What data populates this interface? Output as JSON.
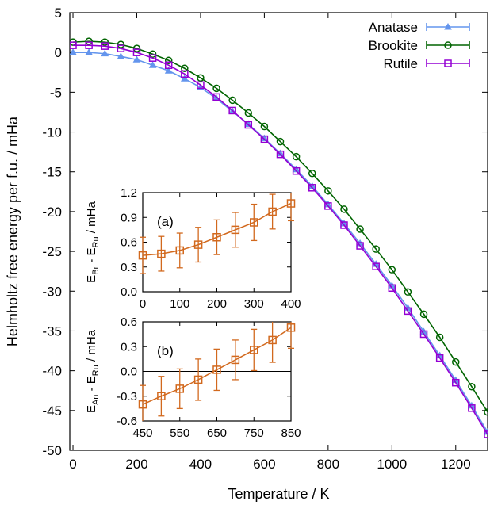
{
  "chart_data": [
    {
      "type": "line",
      "xlabel": "Temperature / K",
      "ylabel": "Helmholtz free energy per f.u. / mHa",
      "xlim": [
        -10,
        1300
      ],
      "ylim": [
        -50,
        5
      ],
      "xticks": [
        0,
        200,
        400,
        600,
        800,
        1000,
        1200
      ],
      "xtick_labels": [
        "0",
        "200",
        "400",
        "600",
        "800",
        "1000",
        "1200"
      ],
      "yticks": [
        5,
        0,
        -5,
        -10,
        -15,
        -20,
        -25,
        -30,
        -35,
        -40,
        -45,
        -50
      ],
      "ytick_labels": [
        "5",
        "0",
        "-5",
        "-10",
        "-15",
        "-20",
        "-25",
        "-30",
        "-35",
        "-40",
        "-45",
        "-50"
      ],
      "legend_position": "top-right",
      "x": [
        0,
        50,
        100,
        150,
        200,
        250,
        300,
        350,
        400,
        450,
        500,
        550,
        600,
        650,
        700,
        750,
        800,
        850,
        900,
        950,
        1000,
        1050,
        1100,
        1150,
        1200,
        1250,
        1300
      ],
      "series": [
        {
          "name": "Anatase",
          "color": "#6495ed",
          "marker": "triangle",
          "values": [
            0.0,
            0.0,
            -0.15,
            -0.5,
            -0.9,
            -1.6,
            -2.3,
            -3.3,
            -4.4,
            -5.8,
            -7.4,
            -9.0,
            -10.8,
            -12.7,
            -14.7,
            -16.8,
            -19.1,
            -21.5,
            -24.0,
            -26.6,
            -29.3,
            -32.1,
            -35.1,
            -38.1,
            -41.2,
            -44.4,
            -47.7
          ]
        },
        {
          "name": "Brookite",
          "color": "#006400",
          "marker": "circle",
          "values": [
            1.3,
            1.4,
            1.3,
            1.0,
            0.5,
            -0.2,
            -1.0,
            -2.0,
            -3.2,
            -4.5,
            -6.0,
            -7.6,
            -9.3,
            -11.2,
            -13.1,
            -15.2,
            -17.4,
            -19.7,
            -22.2,
            -24.7,
            -27.3,
            -30.1,
            -32.9,
            -35.8,
            -38.9,
            -42.0,
            -45.2
          ]
        },
        {
          "name": "Rutile",
          "color": "#9400d3",
          "marker": "square",
          "values": [
            0.9,
            0.9,
            0.8,
            0.5,
            0.0,
            -0.7,
            -1.6,
            -2.7,
            -4.1,
            -5.6,
            -7.3,
            -9.1,
            -10.9,
            -12.8,
            -14.9,
            -17.0,
            -19.3,
            -21.7,
            -24.3,
            -26.9,
            -29.6,
            -32.5,
            -35.4,
            -38.4,
            -41.5,
            -44.7,
            -48.0
          ]
        }
      ]
    },
    {
      "type": "line",
      "label": "(a)",
      "ylabel_parts": {
        "main1": "E",
        "sub1": "Br",
        "mid": " - E",
        "sub2": "Ru",
        "tail": " / mHa"
      },
      "xlim": [
        0,
        400
      ],
      "ylim": [
        0.0,
        1.2
      ],
      "xticks": [
        0,
        100,
        200,
        300,
        400
      ],
      "xtick_labels": [
        "0",
        "100",
        "200",
        "300",
        "400"
      ],
      "yticks": [
        0.0,
        0.3,
        0.6,
        0.9,
        1.2
      ],
      "ytick_labels": [
        "0.0",
        "0.3",
        "0.6",
        "0.9",
        "1.2"
      ],
      "color": "#d2691e",
      "marker": "square",
      "x": [
        0,
        50,
        100,
        150,
        200,
        250,
        300,
        350,
        400
      ],
      "values": [
        0.44,
        0.46,
        0.5,
        0.57,
        0.66,
        0.75,
        0.84,
        0.97,
        1.07
      ],
      "errors": [
        0.22,
        0.21,
        0.21,
        0.21,
        0.21,
        0.21,
        0.22,
        0.21,
        0.21
      ]
    },
    {
      "type": "line",
      "label": "(b)",
      "ylabel_parts": {
        "main1": "E",
        "sub1": "An",
        "mid": " - E",
        "sub2": "Ru",
        "tail": " / mHa"
      },
      "xlim": [
        450,
        850
      ],
      "ylim": [
        -0.6,
        0.6
      ],
      "xticks": [
        450,
        550,
        650,
        750,
        850
      ],
      "xtick_labels": [
        "450",
        "550",
        "650",
        "750",
        "850"
      ],
      "yticks": [
        -0.6,
        -0.3,
        0.0,
        0.3,
        0.6
      ],
      "ytick_labels": [
        "-0.6",
        "-0.3",
        "0.0",
        "0.3",
        "0.6"
      ],
      "zero_line": true,
      "color": "#d2691e",
      "marker": "square",
      "x": [
        450,
        500,
        550,
        600,
        650,
        700,
        750,
        800,
        850
      ],
      "values": [
        -0.4,
        -0.3,
        -0.21,
        -0.1,
        0.02,
        0.14,
        0.26,
        0.38,
        0.53
      ],
      "errors": [
        0.23,
        0.24,
        0.24,
        0.25,
        0.25,
        0.24,
        0.25,
        0.27,
        0.25
      ]
    }
  ]
}
